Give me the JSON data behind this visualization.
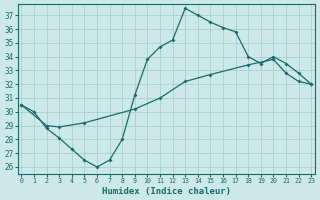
{
  "xlabel": "Humidex (Indice chaleur)",
  "bg_color": "#cce8e8",
  "grid_color": "#aacece",
  "line_color": "#1a6b6b",
  "line1_x": [
    0,
    1,
    2,
    3,
    4,
    5,
    6,
    7,
    8,
    9,
    10,
    11,
    12,
    13,
    14,
    15,
    16,
    17,
    18,
    19,
    20,
    21,
    22,
    23
  ],
  "line1_y": [
    30.5,
    30.0,
    28.8,
    28.1,
    27.3,
    26.5,
    26.0,
    26.5,
    28.0,
    31.2,
    33.8,
    34.7,
    35.2,
    37.5,
    37.0,
    36.5,
    36.1,
    35.8,
    34.0,
    33.5,
    34.0,
    33.5,
    32.8,
    32.0
  ],
  "line2_x": [
    0,
    2,
    3,
    5,
    9,
    11,
    13,
    15,
    18,
    20,
    21,
    22,
    23
  ],
  "line2_y": [
    30.5,
    29.0,
    28.9,
    29.2,
    30.2,
    31.0,
    32.2,
    32.7,
    33.4,
    33.8,
    32.8,
    32.2,
    32.0
  ],
  "xlim": [
    0,
    23
  ],
  "ylim": [
    25.5,
    37.8
  ],
  "yticks": [
    26,
    27,
    28,
    29,
    30,
    31,
    32,
    33,
    34,
    35,
    36,
    37
  ],
  "xticks": [
    0,
    1,
    2,
    3,
    4,
    5,
    6,
    7,
    8,
    9,
    10,
    11,
    12,
    13,
    14,
    15,
    16,
    17,
    18,
    19,
    20,
    21,
    22,
    23
  ]
}
